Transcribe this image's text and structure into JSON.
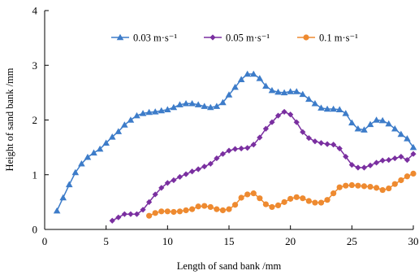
{
  "chart_data": {
    "type": "line",
    "title": "",
    "xlabel": "Length of sand bank /mm",
    "ylabel": "Height of sand bank /mm",
    "xlim": [
      0,
      30
    ],
    "ylim": [
      0,
      4
    ],
    "x_ticks": [
      0,
      5,
      10,
      15,
      20,
      25,
      30
    ],
    "y_ticks": [
      0,
      1,
      2,
      3,
      4
    ],
    "grid": false,
    "legend_position": "top",
    "series": [
      {
        "name": "0.03 m·s⁻¹",
        "color": "#3d7cc9",
        "marker": "triangle",
        "points": [
          [
            1.0,
            0.34
          ],
          [
            1.5,
            0.58
          ],
          [
            2.0,
            0.82
          ],
          [
            2.5,
            1.04
          ],
          [
            3.0,
            1.2
          ],
          [
            3.5,
            1.32
          ],
          [
            4.0,
            1.4
          ],
          [
            4.5,
            1.47
          ],
          [
            5.0,
            1.58
          ],
          [
            5.5,
            1.69
          ],
          [
            6.0,
            1.79
          ],
          [
            6.5,
            1.91
          ],
          [
            7.0,
            2.0
          ],
          [
            7.5,
            2.08
          ],
          [
            8.0,
            2.12
          ],
          [
            8.5,
            2.14
          ],
          [
            9.0,
            2.15
          ],
          [
            9.5,
            2.17
          ],
          [
            10.0,
            2.19
          ],
          [
            10.5,
            2.23
          ],
          [
            11.0,
            2.28
          ],
          [
            11.5,
            2.3
          ],
          [
            12.0,
            2.3
          ],
          [
            12.5,
            2.28
          ],
          [
            13.0,
            2.25
          ],
          [
            13.5,
            2.23
          ],
          [
            14.0,
            2.25
          ],
          [
            14.5,
            2.32
          ],
          [
            15.0,
            2.46
          ],
          [
            15.5,
            2.6
          ],
          [
            16.0,
            2.74
          ],
          [
            16.5,
            2.84
          ],
          [
            17.0,
            2.84
          ],
          [
            17.5,
            2.76
          ],
          [
            18.0,
            2.62
          ],
          [
            18.5,
            2.54
          ],
          [
            19.0,
            2.51
          ],
          [
            19.5,
            2.5
          ],
          [
            20.0,
            2.52
          ],
          [
            20.5,
            2.52
          ],
          [
            21.0,
            2.47
          ],
          [
            21.5,
            2.38
          ],
          [
            22.0,
            2.3
          ],
          [
            22.5,
            2.22
          ],
          [
            23.0,
            2.2
          ],
          [
            23.5,
            2.2
          ],
          [
            24.0,
            2.19
          ],
          [
            24.5,
            2.12
          ],
          [
            25.0,
            1.95
          ],
          [
            25.5,
            1.84
          ],
          [
            26.0,
            1.82
          ],
          [
            26.5,
            1.92
          ],
          [
            27.0,
            2.0
          ],
          [
            27.5,
            1.99
          ],
          [
            28.0,
            1.93
          ],
          [
            28.5,
            1.84
          ],
          [
            29.0,
            1.74
          ],
          [
            29.5,
            1.66
          ],
          [
            30.0,
            1.5
          ]
        ]
      },
      {
        "name": "0.05 m·s⁻¹",
        "color": "#7a2fa0",
        "marker": "diamond",
        "points": [
          [
            5.5,
            0.16
          ],
          [
            6.0,
            0.22
          ],
          [
            6.5,
            0.28
          ],
          [
            7.0,
            0.28
          ],
          [
            7.5,
            0.28
          ],
          [
            8.0,
            0.36
          ],
          [
            8.5,
            0.5
          ],
          [
            9.0,
            0.64
          ],
          [
            9.5,
            0.76
          ],
          [
            10.0,
            0.85
          ],
          [
            10.5,
            0.9
          ],
          [
            11.0,
            0.96
          ],
          [
            11.5,
            1.01
          ],
          [
            12.0,
            1.06
          ],
          [
            12.5,
            1.1
          ],
          [
            13.0,
            1.15
          ],
          [
            13.5,
            1.2
          ],
          [
            14.0,
            1.3
          ],
          [
            14.5,
            1.38
          ],
          [
            15.0,
            1.44
          ],
          [
            15.5,
            1.47
          ],
          [
            16.0,
            1.48
          ],
          [
            16.5,
            1.49
          ],
          [
            17.0,
            1.55
          ],
          [
            17.5,
            1.68
          ],
          [
            18.0,
            1.84
          ],
          [
            18.5,
            1.96
          ],
          [
            19.0,
            2.08
          ],
          [
            19.5,
            2.15
          ],
          [
            20.0,
            2.1
          ],
          [
            20.5,
            1.96
          ],
          [
            21.0,
            1.78
          ],
          [
            21.5,
            1.67
          ],
          [
            22.0,
            1.61
          ],
          [
            22.5,
            1.58
          ],
          [
            23.0,
            1.56
          ],
          [
            23.5,
            1.55
          ],
          [
            24.0,
            1.48
          ],
          [
            24.5,
            1.33
          ],
          [
            25.0,
            1.18
          ],
          [
            25.5,
            1.13
          ],
          [
            26.0,
            1.13
          ],
          [
            26.5,
            1.17
          ],
          [
            27.0,
            1.22
          ],
          [
            27.5,
            1.26
          ],
          [
            28.0,
            1.27
          ],
          [
            28.5,
            1.3
          ],
          [
            29.0,
            1.33
          ],
          [
            29.5,
            1.27
          ],
          [
            30.0,
            1.38
          ]
        ]
      },
      {
        "name": "0.1 m·s⁻¹",
        "color": "#ee8a30",
        "marker": "circle",
        "points": [
          [
            8.5,
            0.25
          ],
          [
            9.0,
            0.3
          ],
          [
            9.5,
            0.33
          ],
          [
            10.0,
            0.33
          ],
          [
            10.5,
            0.32
          ],
          [
            11.0,
            0.33
          ],
          [
            11.5,
            0.35
          ],
          [
            12.0,
            0.37
          ],
          [
            12.5,
            0.42
          ],
          [
            13.0,
            0.43
          ],
          [
            13.5,
            0.41
          ],
          [
            14.0,
            0.37
          ],
          [
            14.5,
            0.35
          ],
          [
            15.0,
            0.37
          ],
          [
            15.5,
            0.45
          ],
          [
            16.0,
            0.58
          ],
          [
            16.5,
            0.64
          ],
          [
            17.0,
            0.66
          ],
          [
            17.5,
            0.57
          ],
          [
            18.0,
            0.46
          ],
          [
            18.5,
            0.41
          ],
          [
            19.0,
            0.44
          ],
          [
            19.5,
            0.5
          ],
          [
            20.0,
            0.56
          ],
          [
            20.5,
            0.59
          ],
          [
            21.0,
            0.57
          ],
          [
            21.5,
            0.52
          ],
          [
            22.0,
            0.49
          ],
          [
            22.5,
            0.49
          ],
          [
            23.0,
            0.54
          ],
          [
            23.5,
            0.66
          ],
          [
            24.0,
            0.77
          ],
          [
            24.5,
            0.8
          ],
          [
            25.0,
            0.81
          ],
          [
            25.5,
            0.8
          ],
          [
            26.0,
            0.79
          ],
          [
            26.5,
            0.78
          ],
          [
            27.0,
            0.76
          ],
          [
            27.5,
            0.72
          ],
          [
            28.0,
            0.75
          ],
          [
            28.5,
            0.83
          ],
          [
            29.0,
            0.9
          ],
          [
            29.5,
            0.97
          ],
          [
            30.0,
            1.02
          ]
        ]
      }
    ]
  }
}
